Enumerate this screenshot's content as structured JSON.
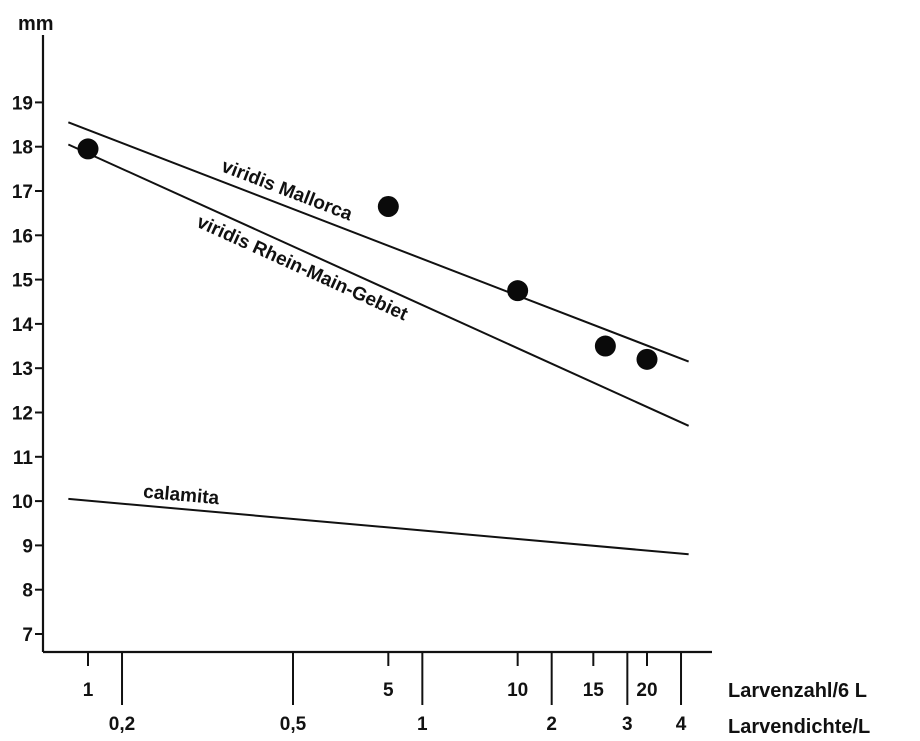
{
  "chart_data": {
    "type": "scatter",
    "title": "",
    "ylabel": "mm",
    "ylim": [
      6,
      20
    ],
    "yticks": [
      7,
      8,
      9,
      10,
      11,
      12,
      13,
      14,
      15,
      16,
      17,
      18,
      19
    ],
    "x_scale": "log",
    "xlim": [
      0.8,
      30
    ],
    "x_axes": [
      {
        "label": "Larvenzahl/6 L",
        "ticks": [
          {
            "value": 1,
            "label": "1"
          },
          {
            "value": 5,
            "label": "5"
          },
          {
            "value": 10,
            "label": "10"
          },
          {
            "value": 15,
            "label": "15"
          },
          {
            "value": 20,
            "label": "20"
          }
        ]
      },
      {
        "label": "Larvendichte/L",
        "ticks": [
          {
            "value": 0.2,
            "label": "0,2"
          },
          {
            "value": 0.5,
            "label": "0,5"
          },
          {
            "value": 1,
            "label": "1"
          },
          {
            "value": 2,
            "label": "2"
          },
          {
            "value": 3,
            "label": "3"
          },
          {
            "value": 4,
            "label": "4"
          }
        ]
      }
    ],
    "series": [
      {
        "name": "viridis Mallorca",
        "kind": "line",
        "x": [
          0.9,
          25
        ],
        "y": [
          18.55,
          13.15
        ]
      },
      {
        "name": "viridis Rhein-Main-Gebiet",
        "kind": "line",
        "x": [
          0.9,
          25
        ],
        "y": [
          18.05,
          11.7
        ]
      },
      {
        "name": "calamita",
        "kind": "line",
        "x": [
          0.9,
          25
        ],
        "y": [
          10.05,
          8.8
        ]
      },
      {
        "name": "",
        "kind": "points",
        "x": [
          1,
          5,
          10,
          16,
          20
        ],
        "y": [
          17.95,
          16.65,
          14.75,
          13.5,
          13.2
        ]
      }
    ],
    "grid": false,
    "legend": "none"
  }
}
